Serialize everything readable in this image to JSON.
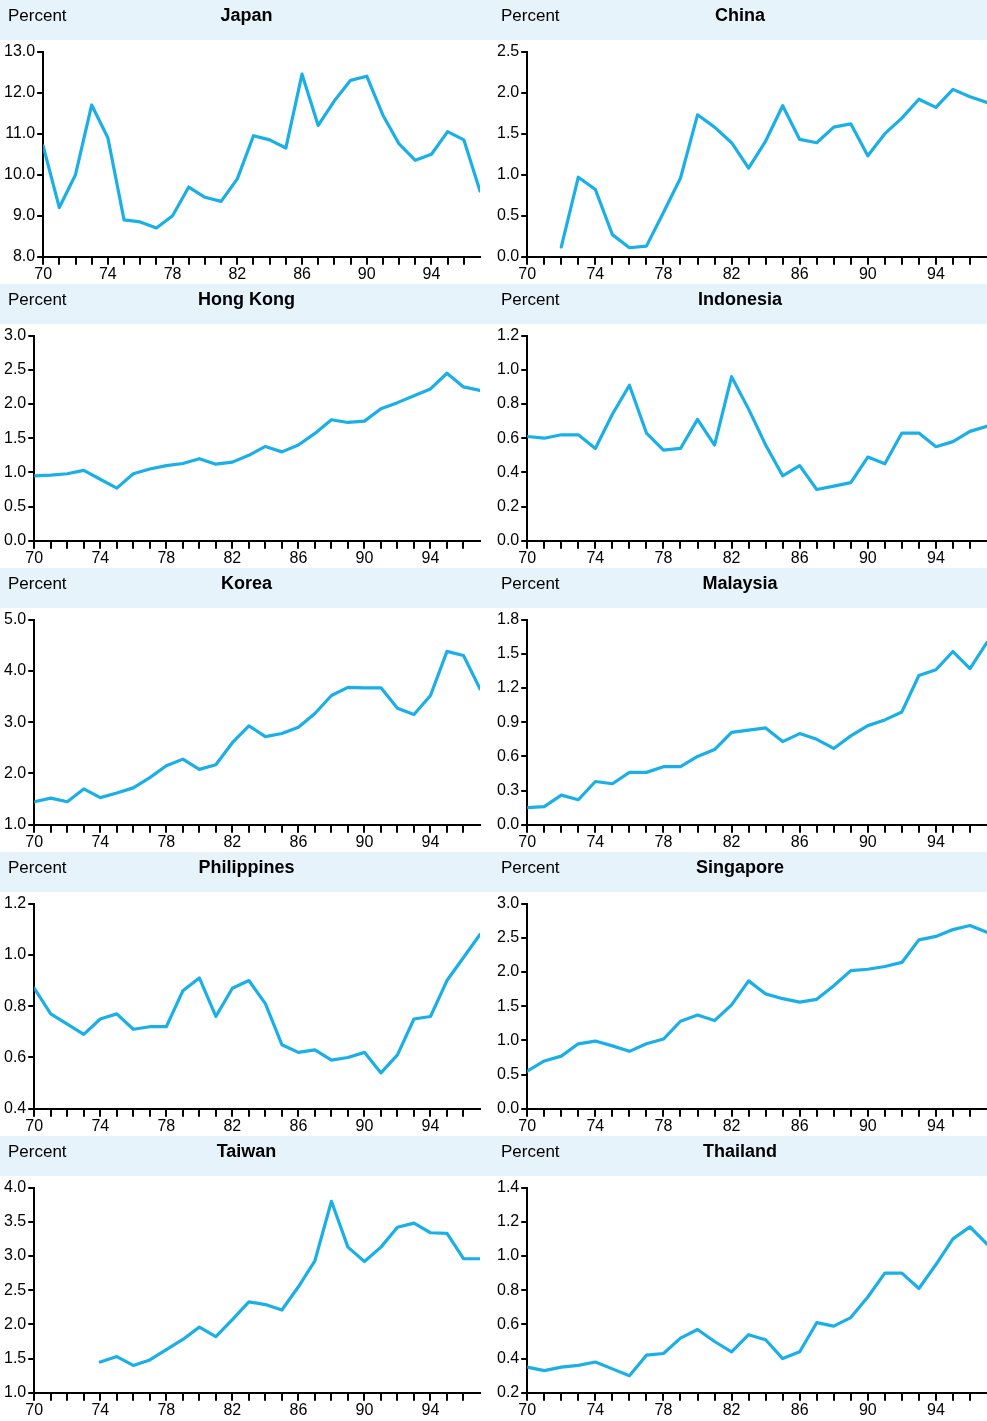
{
  "chart_data": [
    {
      "type": "line",
      "title": "Japan",
      "ylabel": "Percent",
      "marker": "none",
      "x": [
        70,
        71,
        72,
        73,
        74,
        75,
        76,
        77,
        78,
        79,
        80,
        81,
        82,
        83,
        84,
        85,
        86,
        87,
        88,
        89,
        90,
        91,
        92,
        93,
        94,
        95,
        96,
        97
      ],
      "series": [
        {
          "color": "#1aafe6",
          "values": [
            10.7,
            9.2,
            10.0,
            11.7,
            10.9,
            8.9,
            8.85,
            8.7,
            9.0,
            9.7,
            9.45,
            9.35,
            9.9,
            10.95,
            10.85,
            10.65,
            12.45,
            11.2,
            11.8,
            12.3,
            12.4,
            11.45,
            10.75,
            10.35,
            10.5,
            11.05,
            10.85,
            9.6
          ]
        }
      ],
      "xlim": [
        70,
        97
      ],
      "xticks": [
        70,
        {
          "value": 71,
          "label": null
        },
        {
          "value": 72,
          "label": null
        },
        {
          "value": 73,
          "label": null
        },
        74,
        {
          "value": 75,
          "label": null
        },
        {
          "value": 76,
          "label": null
        },
        {
          "value": 77,
          "label": null
        },
        78,
        {
          "value": 79,
          "label": null
        },
        {
          "value": 80,
          "label": null
        },
        {
          "value": 81,
          "label": null
        },
        82,
        {
          "value": 83,
          "label": null
        },
        {
          "value": 84,
          "label": null
        },
        {
          "value": 85,
          "label": null
        },
        86,
        {
          "value": 87,
          "label": null
        },
        {
          "value": 88,
          "label": null
        },
        {
          "value": 89,
          "label": null
        },
        90,
        {
          "value": 91,
          "label": null
        },
        {
          "value": 92,
          "label": null
        },
        {
          "value": 93,
          "label": null
        },
        94,
        {
          "value": 95,
          "label": null
        },
        {
          "value": 96,
          "label": null
        }
      ],
      "ylim": [
        8,
        13
      ],
      "yticks": [
        {
          "value": 8,
          "label": "8.0"
        },
        {
          "value": 9,
          "label": "9.0"
        },
        {
          "value": 10,
          "label": "10.0"
        },
        {
          "value": 11,
          "label": "11.0"
        },
        {
          "value": 12,
          "label": "12.0"
        },
        {
          "value": 13,
          "label": "13.0"
        }
      ]
    },
    {
      "type": "line",
      "title": "China",
      "ylabel": "Percent",
      "marker": "none",
      "series": [
        {
          "color": "#1aafe6",
          "x": [
            72,
            73,
            74,
            75,
            76,
            77,
            78,
            79,
            80,
            81,
            82,
            83,
            84,
            85,
            86,
            87,
            88,
            89,
            90,
            91,
            92,
            93,
            94,
            95,
            96,
            97
          ],
          "values": [
            0.12,
            0.97,
            0.82,
            0.27,
            0.11,
            0.13,
            0.54,
            0.96,
            1.73,
            1.58,
            1.39,
            1.08,
            1.41,
            1.84,
            1.43,
            1.39,
            1.58,
            1.62,
            1.23,
            1.5,
            1.69,
            1.92,
            1.82,
            2.04,
            1.95,
            1.88
          ]
        }
      ],
      "xlim": [
        70,
        97
      ],
      "xticks": [
        70,
        {
          "value": 71,
          "label": null
        },
        {
          "value": 72,
          "label": null
        },
        {
          "value": 73,
          "label": null
        },
        74,
        {
          "value": 75,
          "label": null
        },
        {
          "value": 76,
          "label": null
        },
        {
          "value": 77,
          "label": null
        },
        78,
        {
          "value": 79,
          "label": null
        },
        {
          "value": 80,
          "label": null
        },
        {
          "value": 81,
          "label": null
        },
        82,
        {
          "value": 83,
          "label": null
        },
        {
          "value": 84,
          "label": null
        },
        {
          "value": 85,
          "label": null
        },
        86,
        {
          "value": 87,
          "label": null
        },
        {
          "value": 88,
          "label": null
        },
        {
          "value": 89,
          "label": null
        },
        90,
        {
          "value": 91,
          "label": null
        },
        {
          "value": 92,
          "label": null
        },
        {
          "value": 93,
          "label": null
        },
        94,
        {
          "value": 95,
          "label": null
        },
        {
          "value": 96,
          "label": null
        }
      ],
      "ylim": [
        0,
        2.5
      ],
      "yticks": [
        {
          "value": 0,
          "label": "0.0"
        },
        0.5,
        {
          "value": 1,
          "label": "1.0"
        },
        1.5,
        {
          "value": 2,
          "label": "2.0"
        },
        2.5
      ]
    },
    {
      "type": "line",
      "title": "Hong Kong",
      "ylabel": "Percent",
      "marker": "none",
      "x": [
        70,
        71,
        72,
        73,
        74,
        75,
        76,
        77,
        78,
        79,
        80,
        81,
        82,
        83,
        84,
        85,
        86,
        87,
        88,
        89,
        90,
        91,
        92,
        93,
        94,
        95,
        96,
        97
      ],
      "series": [
        {
          "color": "#1aafe6",
          "values": [
            0.95,
            0.96,
            0.98,
            1.03,
            0.9,
            0.77,
            0.98,
            1.05,
            1.1,
            1.13,
            1.2,
            1.12,
            1.15,
            1.25,
            1.38,
            1.3,
            1.4,
            1.57,
            1.77,
            1.73,
            1.75,
            1.93,
            2.02,
            2.12,
            2.22,
            2.45,
            2.25,
            2.2
          ]
        }
      ],
      "xlim": [
        70,
        97
      ],
      "xticks": [
        70,
        {
          "value": 71,
          "label": null
        },
        {
          "value": 72,
          "label": null
        },
        {
          "value": 73,
          "label": null
        },
        74,
        {
          "value": 75,
          "label": null
        },
        {
          "value": 76,
          "label": null
        },
        {
          "value": 77,
          "label": null
        },
        78,
        {
          "value": 79,
          "label": null
        },
        {
          "value": 80,
          "label": null
        },
        {
          "value": 81,
          "label": null
        },
        82,
        {
          "value": 83,
          "label": null
        },
        {
          "value": 84,
          "label": null
        },
        {
          "value": 85,
          "label": null
        },
        86,
        {
          "value": 87,
          "label": null
        },
        {
          "value": 88,
          "label": null
        },
        {
          "value": 89,
          "label": null
        },
        90,
        {
          "value": 91,
          "label": null
        },
        {
          "value": 92,
          "label": null
        },
        {
          "value": 93,
          "label": null
        },
        94,
        {
          "value": 95,
          "label": null
        },
        {
          "value": 96,
          "label": null
        }
      ],
      "ylim": [
        0,
        3
      ],
      "yticks": [
        {
          "value": 0,
          "label": "0.0"
        },
        0.5,
        {
          "value": 1,
          "label": "1.0"
        },
        1.5,
        {
          "value": 2,
          "label": "2.0"
        },
        2.5,
        {
          "value": 3,
          "label": "3.0"
        }
      ]
    },
    {
      "type": "line",
      "title": "Indonesia",
      "ylabel": "Percent",
      "marker": "none",
      "x": [
        70,
        71,
        72,
        73,
        74,
        75,
        76,
        77,
        78,
        79,
        80,
        81,
        82,
        83,
        84,
        85,
        86,
        87,
        88,
        89,
        90,
        91,
        92,
        93,
        94,
        95,
        96,
        97
      ],
      "series": [
        {
          "color": "#1aafe6",
          "values": [
            0.61,
            0.6,
            0.62,
            0.62,
            0.54,
            0.74,
            0.91,
            0.63,
            0.53,
            0.54,
            0.71,
            0.56,
            0.96,
            0.77,
            0.56,
            0.38,
            0.44,
            0.3,
            0.32,
            0.34,
            0.49,
            0.45,
            0.63,
            0.63,
            0.55,
            0.58,
            0.64,
            0.67
          ]
        }
      ],
      "xlim": [
        70,
        97
      ],
      "xticks": [
        70,
        {
          "value": 71,
          "label": null
        },
        {
          "value": 72,
          "label": null
        },
        {
          "value": 73,
          "label": null
        },
        74,
        {
          "value": 75,
          "label": null
        },
        {
          "value": 76,
          "label": null
        },
        {
          "value": 77,
          "label": null
        },
        78,
        {
          "value": 79,
          "label": null
        },
        {
          "value": 80,
          "label": null
        },
        {
          "value": 81,
          "label": null
        },
        82,
        {
          "value": 83,
          "label": null
        },
        {
          "value": 84,
          "label": null
        },
        {
          "value": 85,
          "label": null
        },
        86,
        {
          "value": 87,
          "label": null
        },
        {
          "value": 88,
          "label": null
        },
        {
          "value": 89,
          "label": null
        },
        90,
        {
          "value": 91,
          "label": null
        },
        {
          "value": 92,
          "label": null
        },
        {
          "value": 93,
          "label": null
        },
        94,
        {
          "value": 95,
          "label": null
        },
        {
          "value": 96,
          "label": null
        }
      ],
      "ylim": [
        0,
        1.2
      ],
      "yticks": [
        {
          "value": 0,
          "label": "0.0"
        },
        0.2,
        0.4,
        0.6,
        0.8,
        {
          "value": 1,
          "label": "1.0"
        },
        1.2
      ]
    },
    {
      "type": "line",
      "title": "Korea",
      "ylabel": "Percent",
      "marker": "none",
      "x": [
        70,
        71,
        72,
        73,
        74,
        75,
        76,
        77,
        78,
        79,
        80,
        81,
        82,
        83,
        84,
        85,
        86,
        87,
        88,
        89,
        90,
        91,
        92,
        93,
        94,
        95,
        96,
        97
      ],
      "series": [
        {
          "color": "#1aafe6",
          "values": [
            1.45,
            1.52,
            1.45,
            1.7,
            1.53,
            1.62,
            1.72,
            1.92,
            2.15,
            2.28,
            2.08,
            2.17,
            2.6,
            2.93,
            2.72,
            2.78,
            2.9,
            3.17,
            3.52,
            3.68,
            3.67,
            3.67,
            3.27,
            3.15,
            3.52,
            4.38,
            4.3,
            3.65
          ]
        }
      ],
      "xlim": [
        70,
        97
      ],
      "xticks": [
        70,
        {
          "value": 71,
          "label": null
        },
        {
          "value": 72,
          "label": null
        },
        {
          "value": 73,
          "label": null
        },
        74,
        {
          "value": 75,
          "label": null
        },
        {
          "value": 76,
          "label": null
        },
        {
          "value": 77,
          "label": null
        },
        78,
        {
          "value": 79,
          "label": null
        },
        {
          "value": 80,
          "label": null
        },
        {
          "value": 81,
          "label": null
        },
        82,
        {
          "value": 83,
          "label": null
        },
        {
          "value": 84,
          "label": null
        },
        {
          "value": 85,
          "label": null
        },
        86,
        {
          "value": 87,
          "label": null
        },
        {
          "value": 88,
          "label": null
        },
        {
          "value": 89,
          "label": null
        },
        90,
        {
          "value": 91,
          "label": null
        },
        {
          "value": 92,
          "label": null
        },
        {
          "value": 93,
          "label": null
        },
        94,
        {
          "value": 95,
          "label": null
        },
        {
          "value": 96,
          "label": null
        }
      ],
      "ylim": [
        1,
        5
      ],
      "yticks": [
        {
          "value": 1,
          "label": "1.0"
        },
        {
          "value": 2,
          "label": "2.0"
        },
        {
          "value": 3,
          "label": "3.0"
        },
        {
          "value": 4,
          "label": "4.0"
        },
        {
          "value": 5,
          "label": "5.0"
        }
      ]
    },
    {
      "type": "line",
      "title": "Malaysia",
      "ylabel": "Percent",
      "marker": "none",
      "x": [
        70,
        71,
        72,
        73,
        74,
        75,
        76,
        77,
        78,
        79,
        80,
        81,
        82,
        83,
        84,
        85,
        86,
        87,
        88,
        89,
        90,
        91,
        92,
        93,
        94,
        95,
        96,
        97
      ],
      "series": [
        {
          "color": "#1aafe6",
          "values": [
            0.15,
            0.16,
            0.26,
            0.22,
            0.38,
            0.36,
            0.46,
            0.46,
            0.51,
            0.51,
            0.6,
            0.66,
            0.81,
            0.83,
            0.85,
            0.73,
            0.8,
            0.75,
            0.67,
            0.78,
            0.87,
            0.92,
            0.99,
            1.31,
            1.36,
            1.52,
            1.37,
            1.6
          ]
        }
      ],
      "xlim": [
        70,
        97
      ],
      "xticks": [
        70,
        {
          "value": 71,
          "label": null
        },
        {
          "value": 72,
          "label": null
        },
        {
          "value": 73,
          "label": null
        },
        74,
        {
          "value": 75,
          "label": null
        },
        {
          "value": 76,
          "label": null
        },
        {
          "value": 77,
          "label": null
        },
        78,
        {
          "value": 79,
          "label": null
        },
        {
          "value": 80,
          "label": null
        },
        {
          "value": 81,
          "label": null
        },
        82,
        {
          "value": 83,
          "label": null
        },
        {
          "value": 84,
          "label": null
        },
        {
          "value": 85,
          "label": null
        },
        86,
        {
          "value": 87,
          "label": null
        },
        {
          "value": 88,
          "label": null
        },
        {
          "value": 89,
          "label": null
        },
        90,
        {
          "value": 91,
          "label": null
        },
        {
          "value": 92,
          "label": null
        },
        {
          "value": 93,
          "label": null
        },
        94,
        {
          "value": 95,
          "label": null
        },
        {
          "value": 96,
          "label": null
        }
      ],
      "ylim": [
        0,
        1.8
      ],
      "yticks": [
        {
          "value": 0,
          "label": "0.0"
        },
        0.3,
        0.6,
        0.9,
        1.2,
        1.5,
        1.8
      ]
    },
    {
      "type": "line",
      "title": "Philippines",
      "ylabel": "Percent",
      "marker": "none",
      "x": [
        70,
        71,
        72,
        73,
        74,
        75,
        76,
        77,
        78,
        79,
        80,
        81,
        82,
        83,
        84,
        85,
        86,
        87,
        88,
        89,
        90,
        91,
        92,
        93,
        94,
        95,
        96,
        97
      ],
      "series": [
        {
          "color": "#1aafe6",
          "values": [
            0.87,
            0.77,
            0.73,
            0.69,
            0.75,
            0.77,
            0.71,
            0.72,
            0.72,
            0.86,
            0.91,
            0.76,
            0.87,
            0.9,
            0.81,
            0.65,
            0.62,
            0.63,
            0.59,
            0.6,
            0.62,
            0.54,
            0.61,
            0.75,
            0.76,
            0.9,
            0.99,
            1.08
          ]
        }
      ],
      "xlim": [
        70,
        97
      ],
      "xticks": [
        70,
        {
          "value": 71,
          "label": null
        },
        {
          "value": 72,
          "label": null
        },
        {
          "value": 73,
          "label": null
        },
        74,
        {
          "value": 75,
          "label": null
        },
        {
          "value": 76,
          "label": null
        },
        {
          "value": 77,
          "label": null
        },
        78,
        {
          "value": 79,
          "label": null
        },
        {
          "value": 80,
          "label": null
        },
        {
          "value": 81,
          "label": null
        },
        82,
        {
          "value": 83,
          "label": null
        },
        {
          "value": 84,
          "label": null
        },
        {
          "value": 85,
          "label": null
        },
        86,
        {
          "value": 87,
          "label": null
        },
        {
          "value": 88,
          "label": null
        },
        {
          "value": 89,
          "label": null
        },
        90,
        {
          "value": 91,
          "label": null
        },
        {
          "value": 92,
          "label": null
        },
        {
          "value": 93,
          "label": null
        },
        94,
        {
          "value": 95,
          "label": null
        },
        {
          "value": 96,
          "label": null
        }
      ],
      "ylim": [
        0.4,
        1.2
      ],
      "yticks": [
        0.4,
        0.6,
        0.8,
        {
          "value": 1,
          "label": "1.0"
        },
        1.2
      ]
    },
    {
      "type": "line",
      "title": "Singapore",
      "ylabel": "Percent",
      "marker": "none",
      "x": [
        70,
        71,
        72,
        73,
        74,
        75,
        76,
        77,
        78,
        79,
        80,
        81,
        82,
        83,
        84,
        85,
        86,
        87,
        88,
        89,
        90,
        91,
        92,
        93,
        94,
        95,
        96,
        97
      ],
      "series": [
        {
          "color": "#1aafe6",
          "values": [
            0.55,
            0.7,
            0.77,
            0.95,
            0.99,
            0.92,
            0.84,
            0.95,
            1.02,
            1.28,
            1.37,
            1.29,
            1.52,
            1.87,
            1.68,
            1.61,
            1.56,
            1.6,
            1.8,
            2.02,
            2.04,
            2.08,
            2.14,
            2.47,
            2.52,
            2.62,
            2.68,
            2.58
          ]
        }
      ],
      "xlim": [
        70,
        97
      ],
      "xticks": [
        70,
        {
          "value": 71,
          "label": null
        },
        {
          "value": 72,
          "label": null
        },
        {
          "value": 73,
          "label": null
        },
        74,
        {
          "value": 75,
          "label": null
        },
        {
          "value": 76,
          "label": null
        },
        {
          "value": 77,
          "label": null
        },
        78,
        {
          "value": 79,
          "label": null
        },
        {
          "value": 80,
          "label": null
        },
        {
          "value": 81,
          "label": null
        },
        82,
        {
          "value": 83,
          "label": null
        },
        {
          "value": 84,
          "label": null
        },
        {
          "value": 85,
          "label": null
        },
        86,
        {
          "value": 87,
          "label": null
        },
        {
          "value": 88,
          "label": null
        },
        {
          "value": 89,
          "label": null
        },
        90,
        {
          "value": 91,
          "label": null
        },
        {
          "value": 92,
          "label": null
        },
        {
          "value": 93,
          "label": null
        },
        94,
        {
          "value": 95,
          "label": null
        },
        {
          "value": 96,
          "label": null
        }
      ],
      "ylim": [
        0,
        3
      ],
      "yticks": [
        {
          "value": 0,
          "label": "0.0"
        },
        0.5,
        {
          "value": 1,
          "label": "1.0"
        },
        1.5,
        {
          "value": 2,
          "label": "2.0"
        },
        2.5,
        {
          "value": 3,
          "label": "3.0"
        }
      ]
    },
    {
      "type": "line",
      "title": "Taiwan",
      "ylabel": "Percent",
      "marker": "none",
      "series": [
        {
          "color": "#1aafe6",
          "x": [
            74,
            75,
            76,
            77,
            78,
            79,
            80,
            81,
            82,
            83,
            84,
            85,
            86,
            87,
            88,
            89,
            90,
            91,
            92,
            93,
            94,
            95,
            96,
            97
          ],
          "values": [
            1.45,
            1.53,
            1.4,
            1.48,
            1.63,
            1.78,
            1.96,
            1.82,
            2.07,
            2.33,
            2.29,
            2.21,
            2.55,
            2.93,
            3.8,
            3.13,
            2.92,
            3.13,
            3.42,
            3.48,
            3.34,
            3.33,
            2.96,
            2.96
          ]
        }
      ],
      "xlim": [
        70,
        97
      ],
      "xticks": [
        70,
        {
          "value": 71,
          "label": null
        },
        {
          "value": 72,
          "label": null
        },
        {
          "value": 73,
          "label": null
        },
        74,
        {
          "value": 75,
          "label": null
        },
        {
          "value": 76,
          "label": null
        },
        {
          "value": 77,
          "label": null
        },
        78,
        {
          "value": 79,
          "label": null
        },
        {
          "value": 80,
          "label": null
        },
        {
          "value": 81,
          "label": null
        },
        82,
        {
          "value": 83,
          "label": null
        },
        {
          "value": 84,
          "label": null
        },
        {
          "value": 85,
          "label": null
        },
        86,
        {
          "value": 87,
          "label": null
        },
        {
          "value": 88,
          "label": null
        },
        {
          "value": 89,
          "label": null
        },
        90,
        {
          "value": 91,
          "label": null
        },
        {
          "value": 92,
          "label": null
        },
        {
          "value": 93,
          "label": null
        },
        94,
        {
          "value": 95,
          "label": null
        },
        {
          "value": 96,
          "label": null
        }
      ],
      "ylim": [
        1,
        4
      ],
      "yticks": [
        {
          "value": 1,
          "label": "1.0"
        },
        1.5,
        {
          "value": 2,
          "label": "2.0"
        },
        2.5,
        {
          "value": 3,
          "label": "3.0"
        },
        3.5,
        {
          "value": 4,
          "label": "4.0"
        }
      ]
    },
    {
      "type": "line",
      "title": "Thailand",
      "ylabel": "Percent",
      "marker": "none",
      "x": [
        70,
        71,
        72,
        73,
        74,
        75,
        76,
        77,
        78,
        79,
        80,
        81,
        82,
        83,
        84,
        85,
        86,
        87,
        88,
        89,
        90,
        91,
        92,
        93,
        94,
        95,
        96,
        97
      ],
      "series": [
        {
          "color": "#1aafe6",
          "values": [
            0.35,
            0.33,
            0.35,
            0.36,
            0.38,
            0.34,
            0.3,
            0.42,
            0.43,
            0.52,
            0.57,
            0.5,
            0.44,
            0.54,
            0.51,
            0.4,
            0.44,
            0.61,
            0.59,
            0.64,
            0.76,
            0.9,
            0.9,
            0.81,
            0.95,
            1.1,
            1.17,
            1.07
          ]
        }
      ],
      "xlim": [
        70,
        97
      ],
      "xticks": [
        70,
        {
          "value": 71,
          "label": null
        },
        {
          "value": 72,
          "label": null
        },
        {
          "value": 73,
          "label": null
        },
        74,
        {
          "value": 75,
          "label": null
        },
        {
          "value": 76,
          "label": null
        },
        {
          "value": 77,
          "label": null
        },
        78,
        {
          "value": 79,
          "label": null
        },
        {
          "value": 80,
          "label": null
        },
        {
          "value": 81,
          "label": null
        },
        82,
        {
          "value": 83,
          "label": null
        },
        {
          "value": 84,
          "label": null
        },
        {
          "value": 85,
          "label": null
        },
        86,
        {
          "value": 87,
          "label": null
        },
        {
          "value": 88,
          "label": null
        },
        {
          "value": 89,
          "label": null
        },
        90,
        {
          "value": 91,
          "label": null
        },
        {
          "value": 92,
          "label": null
        },
        {
          "value": 93,
          "label": null
        },
        94,
        {
          "value": 95,
          "label": null
        },
        {
          "value": 96,
          "label": null
        }
      ],
      "ylim": [
        0.2,
        1.4
      ],
      "yticks": [
        0.2,
        0.4,
        0.6,
        0.8,
        {
          "value": 1,
          "label": "1.0"
        },
        1.2,
        1.4
      ]
    }
  ]
}
